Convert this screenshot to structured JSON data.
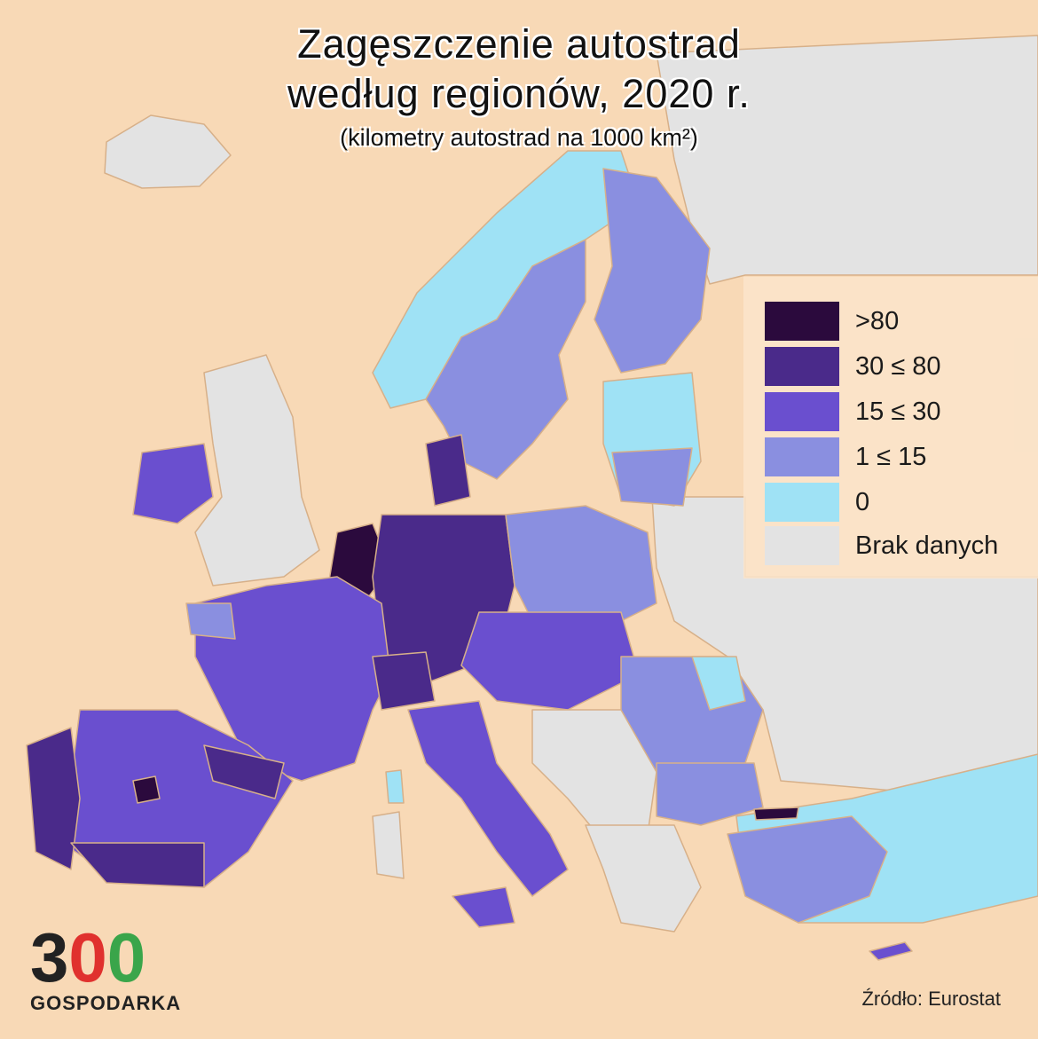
{
  "title": {
    "line1": "Zagęszczenie autostrad",
    "line2": "według regionów, 2020 r.",
    "subtitle": "(kilometry autostrad na 1000 km²)"
  },
  "legend": [
    {
      "label": ">80",
      "color": "#2b0a3d"
    },
    {
      "label": "30 ≤ 80",
      "color": "#4a2a8a"
    },
    {
      "label": "15 ≤ 30",
      "color": "#6a4fcf"
    },
    {
      "label": "1 ≤ 15",
      "color": "#8a8fe0"
    },
    {
      "label": "0",
      "color": "#9fe2f5"
    },
    {
      "label": "Brak danych",
      "color": "#e3e3e3"
    }
  ],
  "logo": {
    "digit1": "3",
    "digit2": "0",
    "digit3": "0",
    "word": "GOSPODARKA",
    "colors": {
      "digit1": "#222222",
      "digit2": "#e0312e",
      "digit3": "#3aa54a"
    }
  },
  "source": "Źródło: Eurostat",
  "colors": {
    "sea": "#f8d9b6",
    "border": "#d9b28c"
  }
}
